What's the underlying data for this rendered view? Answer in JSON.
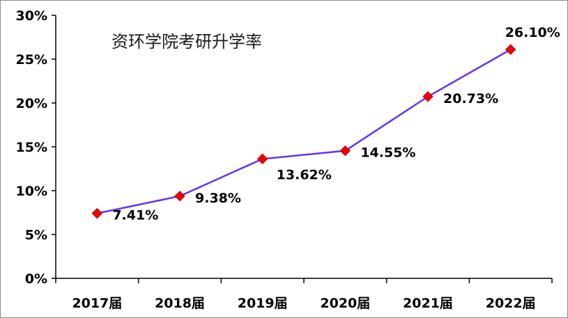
{
  "chart_data": {
    "type": "line",
    "title": "资环学院考研升学率",
    "categories": [
      "2017届",
      "2018届",
      "2019届",
      "2020届",
      "2021届",
      "2022届"
    ],
    "series": [
      {
        "values": [
          7.41,
          9.38,
          13.62,
          14.55,
          20.73,
          26.1
        ],
        "data_labels": [
          "7.41%",
          "9.38%",
          "13.62%",
          "14.55%",
          "20.73%",
          "26.10%"
        ],
        "line_color": "#6633ee",
        "marker_color": "#ee0000",
        "marker": "diamond"
      }
    ],
    "y_ticks": [
      0,
      5,
      10,
      15,
      20,
      25,
      30
    ],
    "y_tick_labels": [
      "0%",
      "5%",
      "10%",
      "15%",
      "20%",
      "25%",
      "30%"
    ],
    "ylim": [
      0,
      30
    ],
    "grid": false,
    "legend": "none"
  }
}
